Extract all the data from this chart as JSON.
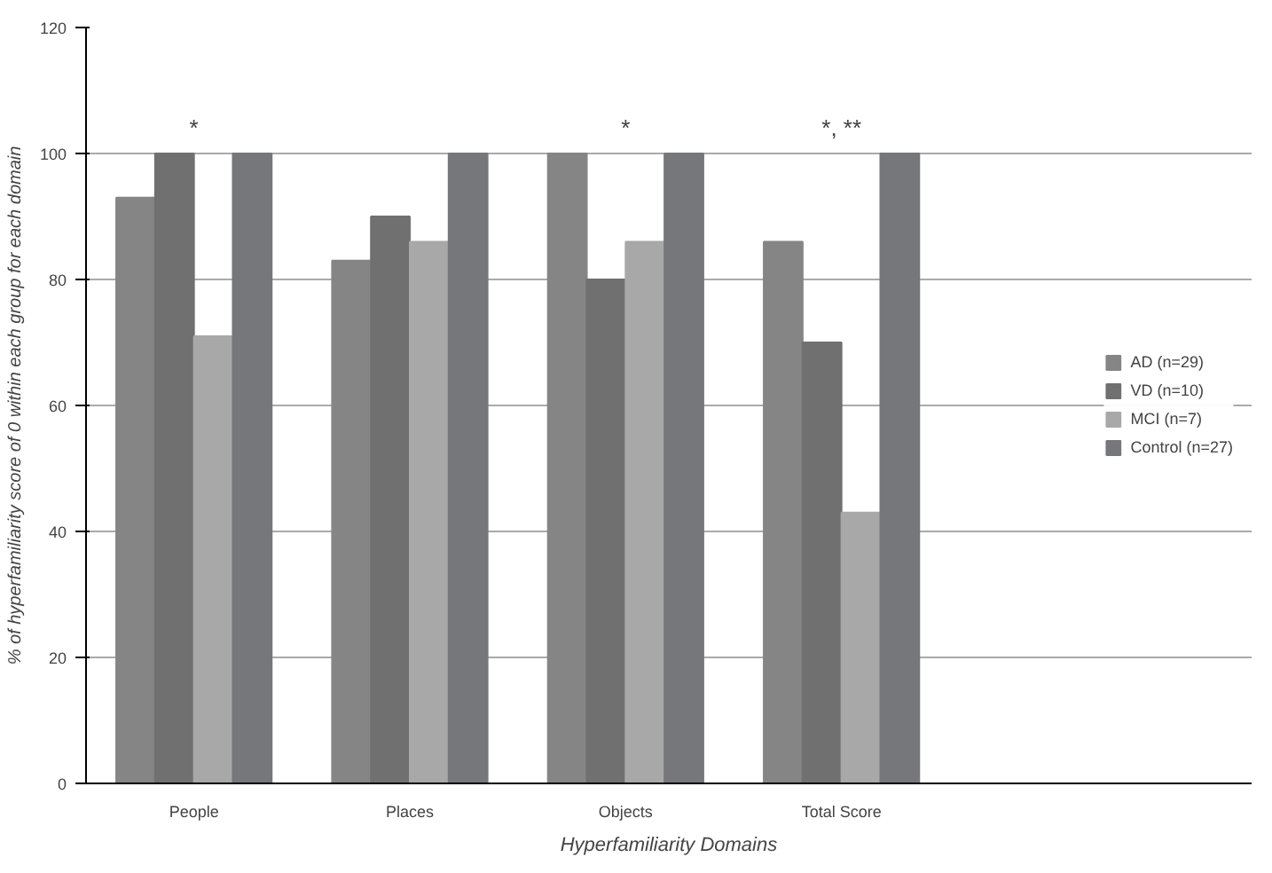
{
  "chart_data": {
    "type": "bar",
    "xlabel": "Hyperfamiliarity Domains",
    "ylabel": "% of hyperfamiliarity score of 0 within each group for each domain",
    "categories": [
      "People",
      "Places",
      "Objects",
      "Total Score"
    ],
    "series": [
      {
        "name": "AD (n=29)",
        "color": "#858585",
        "values": [
          93,
          83,
          100,
          86
        ]
      },
      {
        "name": "VD (n=10)",
        "color": "#707070",
        "values": [
          100,
          90,
          80,
          70
        ]
      },
      {
        "name": "MCI (n=7)",
        "color": "#a8a8a8",
        "values": [
          71,
          86,
          86,
          43
        ]
      },
      {
        "name": "Control (n=27)",
        "color": "#76777b",
        "values": [
          100,
          100,
          100,
          100
        ]
      }
    ],
    "ylim": [
      0,
      120
    ],
    "yticks": [
      0,
      20,
      40,
      60,
      80,
      100,
      120
    ],
    "grid": "y",
    "legend": "right",
    "annotations": [
      "*",
      "*",
      "*, **"
    ]
  }
}
